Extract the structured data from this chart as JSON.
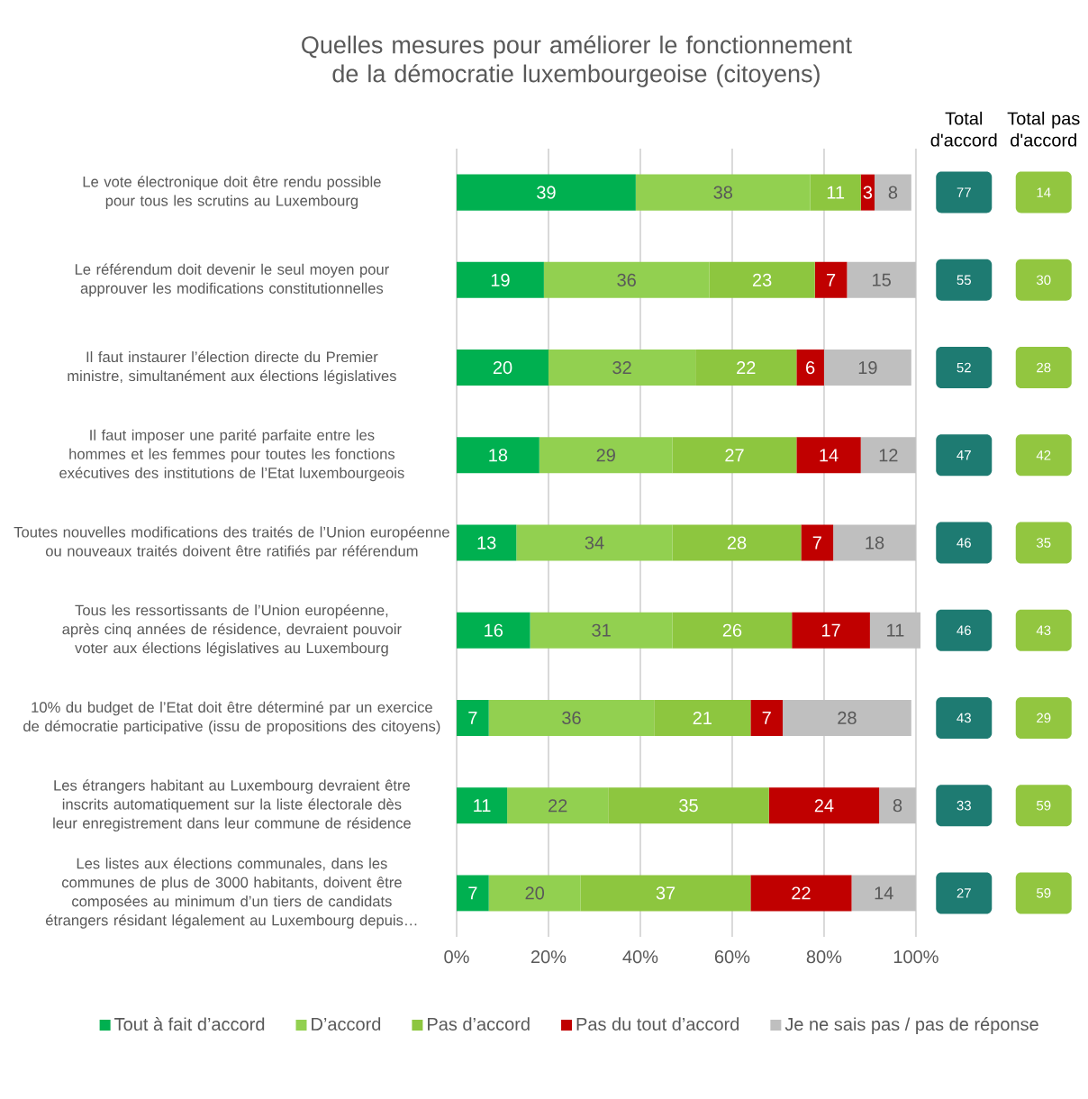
{
  "chart_data": [
    {
      "type": "bar",
      "orientation": "horizontal",
      "stacked": true,
      "data_labels": true,
      "grid": "x",
      "legend": "bottom",
      "title": "Quelles mesures pour améliorer le fonctionnement de la démocratie luxembourgeoise (citoyens)",
      "categories": [
        "Le vote électronique doit être rendu possible pour tous les scrutins au Luxembourg",
        "Le référendum doit devenir le seul moyen pour approuver les modifications constitutionnelles",
        "Il faut instaurer l’élection directe du Premier ministre, simultanément aux élections législatives",
        "Il faut imposer une parité parfaite entre les hommes et les femmes pour toutes les fonctions exécutives des institutions de l’Etat luxembourgeois",
        "Toutes nouvelles modifications des traités de l’Union européenne ou nouveaux traités doivent être ratifiés par référendum",
        "Tous les ressortissants de l’Union européenne, après cinq années de résidence, devraient pouvoir voter aux élections législatives au Luxembourg",
        "10% du budget de l’Etat doit être déterminé par un exercice de démocratie participative (issu de propositions des citoyens)",
        "Les étrangers habitant au Luxembourg devraient être inscrits automatiquement sur la liste électorale dès leur enregistrement dans leur commune de résidence",
        "Les listes aux élections communales, dans les communes de plus de 3000 habitants, doivent être composées au minimum d’un tiers de candidats étrangers résidant légalement au Luxembourg depuis…"
      ],
      "series": [
        {
          "name": "Tout à fait d’accord",
          "color": "#00b050",
          "values": [
            39,
            19,
            20,
            18,
            13,
            16,
            7,
            11,
            7
          ]
        },
        {
          "name": "D’accord",
          "color": "#92d050",
          "values": [
            38,
            36,
            32,
            29,
            34,
            31,
            36,
            22,
            20
          ]
        },
        {
          "name": "Pas d’accord",
          "color": "#8dc63f",
          "values": [
            11,
            23,
            22,
            27,
            28,
            26,
            21,
            35,
            37
          ]
        },
        {
          "name": "Pas du tout d’accord",
          "color": "#c00000",
          "values": [
            3,
            7,
            6,
            14,
            7,
            17,
            7,
            24,
            22
          ]
        },
        {
          "name": "Je ne sais pas / pas de réponse",
          "color": "#bfbfbf",
          "values": [
            8,
            15,
            19,
            12,
            18,
            11,
            28,
            8,
            14
          ]
        }
      ],
      "xlim": [
        0,
        101
      ],
      "xticks": [
        {
          "value": 0,
          "label": "0%"
        },
        {
          "value": 20,
          "label": "20%"
        },
        {
          "value": 40,
          "label": "40%"
        },
        {
          "value": 60,
          "label": "60%"
        },
        {
          "value": 80,
          "label": "80%"
        },
        {
          "value": 100,
          "label": "100%"
        }
      ]
    },
    {
      "type": "other",
      "categories": [
        "Total d'accord",
        "Total pas d'accord"
      ],
      "annotations": [
        "77",
        "14",
        "55",
        "30",
        "52",
        "28",
        "47",
        "42",
        "46",
        "35",
        "46",
        "43",
        "43",
        "29",
        "33",
        "59",
        "27",
        "59"
      ]
    }
  ]
}
